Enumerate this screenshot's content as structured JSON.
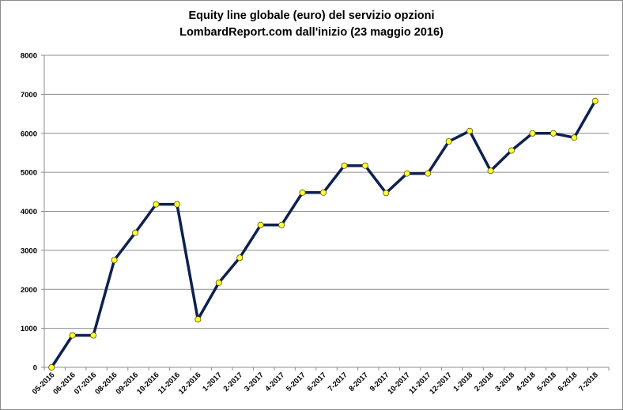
{
  "chart_data": {
    "type": "line",
    "title_line1": "Equity line globale (euro) del servizio opzioni",
    "title_line2": "LombardReport.com dall'inizio (23 maggio 2016)",
    "xlabel": "",
    "ylabel": "",
    "ylim": [
      0,
      8000
    ],
    "yticks": [
      0,
      1000,
      2000,
      3000,
      4000,
      5000,
      6000,
      7000,
      8000
    ],
    "grid": true,
    "legend": "none",
    "categories": [
      "05-2016",
      "06-2016",
      "07-2016",
      "08-2016",
      "09-2016",
      "10-2016",
      "11-2016",
      "12-2016",
      "1-2017",
      "2-2017",
      "3-2017",
      "4-2017",
      "5-2017",
      "6-2017",
      "7-2017",
      "8-2017",
      "9-2017",
      "10-2017",
      "11-2017",
      "12-2017",
      "1-2018",
      "2-2018",
      "3-2018",
      "4-2018",
      "5-2018",
      "6-2018",
      "7-2018"
    ],
    "values": [
      0,
      820,
      820,
      2750,
      3450,
      4180,
      4180,
      1230,
      2170,
      2810,
      3650,
      3650,
      4480,
      4480,
      5170,
      5170,
      4470,
      4970,
      4970,
      5790,
      6060,
      5040,
      5560,
      6000,
      6000,
      5890,
      6830
    ],
    "colors": {
      "line": "#0d2050",
      "marker": "#ffff33",
      "marker_edge": "#555500",
      "grid": "#8c8c8c",
      "axis": "#8c8c8c"
    }
  }
}
